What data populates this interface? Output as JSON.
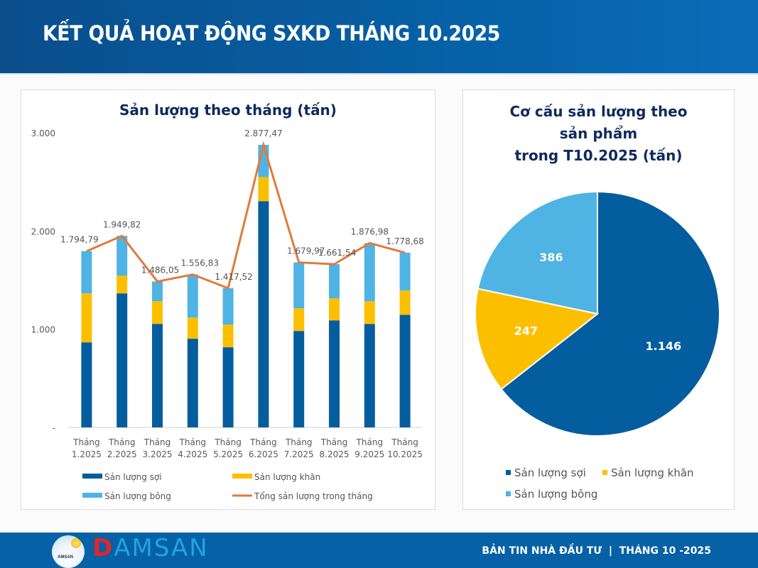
{
  "header": {
    "title": "KẾT QUẢ HOẠT ĐỘNG SXKD THÁNG 10.2025"
  },
  "footer": {
    "brand_initial": "D",
    "brand_rest": "AMSAN",
    "logo_text": "AMSAN",
    "bulletin": "BẢN TIN NHÀ ĐẦU TƯ  |  THÁNG 10 -2025"
  },
  "colors": {
    "soi": "#045d9e",
    "khan": "#fcbf00",
    "bong": "#4fb3e4",
    "total": "#e07a3c",
    "title": "#0e2a5e"
  },
  "chart_data": [
    {
      "type": "bar",
      "stacked": true,
      "title": "Sản lượng theo tháng (tấn)",
      "xlabel": "",
      "ylabel": "",
      "ylim": [
        0,
        3000
      ],
      "yticks": [
        0,
        1000,
        2000,
        3000
      ],
      "ytick_labels": [
        "-",
        "1.000",
        "2.000",
        "3.000"
      ],
      "grid": false,
      "legend_position": "bottom",
      "categories": [
        "Tháng\n1.2025",
        "Tháng\n2.2025",
        "Tháng\n3.2025",
        "Tháng\n4.2025",
        "Tháng\n5.2025",
        "Tháng\n6.2025",
        "Tháng\n7.2025",
        "Tháng\n8.2025",
        "Tháng\n9.2025",
        "Tháng\n10.2025"
      ],
      "series": [
        {
          "name": "Sản lượng sợi",
          "kind": "bar",
          "color": "#045d9e",
          "values": [
            866,
            1365,
            1054,
            903,
            816,
            2303,
            982,
            1090,
            1054,
            1146
          ]
        },
        {
          "name": "Sản lượng khăn",
          "kind": "bar",
          "color": "#fcbf00",
          "values": [
            499,
            180,
            231,
            216,
            231,
            246,
            231,
            224,
            231,
            247
          ]
        },
        {
          "name": "Sản lượng bông",
          "kind": "bar",
          "color": "#4fb3e4",
          "values": [
            430,
            405,
            201,
            438,
            371,
            328,
            467,
            348,
            592,
            386
          ]
        },
        {
          "name": "Tổng sản lượng trong tháng",
          "kind": "line",
          "color": "#e07a3c",
          "values": [
            1794.79,
            1949.82,
            1486.05,
            1556.83,
            1417.52,
            2877.47,
            1679.97,
            1661.54,
            1876.98,
            1778.68
          ]
        }
      ],
      "data_labels": [
        "1.794,79",
        "1.949,82",
        "1.486,05",
        "1.556,83",
        "1.417,52",
        "2.877,47",
        "1.679,97",
        "1.661,54",
        "1.876,98",
        "1.778,68"
      ],
      "legend": [
        "Sản lượng sợi",
        "Sản lượng khăn",
        "Sản lượng bông",
        "Tổng sản lượng trong tháng"
      ]
    },
    {
      "type": "pie",
      "title": "Cơ cấu sản lượng theo\nsản phẩm\ntrong T10.2025 (tấn)",
      "legend_position": "bottom",
      "slices": [
        {
          "label": "Sản lượng sợi",
          "value": 1146,
          "display": "1.146",
          "color": "#045d9e"
        },
        {
          "label": "Sản lượng khăn",
          "value": 247,
          "display": "247",
          "color": "#fcbf00"
        },
        {
          "label": "Sản lượng bông",
          "value": 386,
          "display": "386",
          "color": "#4fb3e4"
        }
      ]
    }
  ]
}
